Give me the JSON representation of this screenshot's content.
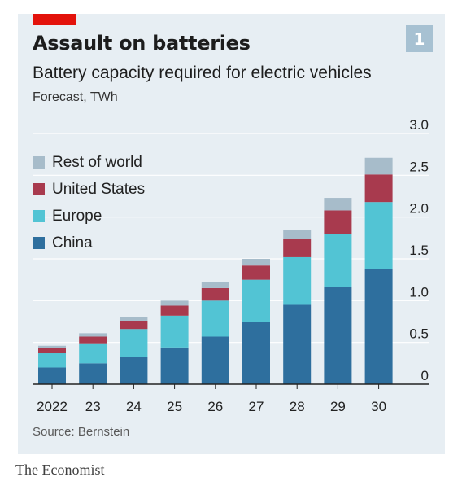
{
  "header": {
    "title": "Assault on batteries",
    "subtitle": "Battery capacity required for electric vehicles",
    "unit": "Forecast, TWh",
    "badge": "1"
  },
  "footer": {
    "source": "Source: Bernstein",
    "brand": "The Economist"
  },
  "colors": {
    "background": "#e7eef3",
    "accent": "#e3120b",
    "china": "#2e6f9e",
    "europe": "#52c4d4",
    "united_states": "#a83a4e",
    "rest_of_world": "#a7bcca"
  },
  "chart_data": {
    "type": "bar",
    "stacked": true,
    "title": "Assault on batteries",
    "subtitle": "Battery capacity required for electric vehicles",
    "ylabel": "Forecast, TWh",
    "categories": [
      "2022",
      "23",
      "24",
      "25",
      "26",
      "27",
      "28",
      "29",
      "30"
    ],
    "ylim": [
      0,
      3.0
    ],
    "yticks": [
      "0",
      "0.5",
      "1.0",
      "1.5",
      "2.0",
      "2.5",
      "3.0"
    ],
    "ytick_values": [
      0,
      0.5,
      1.0,
      1.5,
      2.0,
      2.5,
      3.0
    ],
    "grid": true,
    "legend_position": "top-left",
    "series": [
      {
        "name": "China",
        "color": "#2e6f9e",
        "values": [
          0.2,
          0.25,
          0.33,
          0.44,
          0.57,
          0.75,
          0.95,
          1.16,
          1.38
        ]
      },
      {
        "name": "Europe",
        "color": "#52c4d4",
        "values": [
          0.17,
          0.24,
          0.33,
          0.38,
          0.43,
          0.5,
          0.57,
          0.64,
          0.8
        ]
      },
      {
        "name": "United States",
        "color": "#a83a4e",
        "values": [
          0.06,
          0.08,
          0.1,
          0.12,
          0.15,
          0.17,
          0.22,
          0.28,
          0.33
        ]
      },
      {
        "name": "Rest of world",
        "color": "#a7bcca",
        "values": [
          0.03,
          0.04,
          0.04,
          0.06,
          0.07,
          0.08,
          0.11,
          0.15,
          0.2
        ]
      }
    ],
    "legend": [
      "Rest of world",
      "United States",
      "Europe",
      "China"
    ]
  }
}
